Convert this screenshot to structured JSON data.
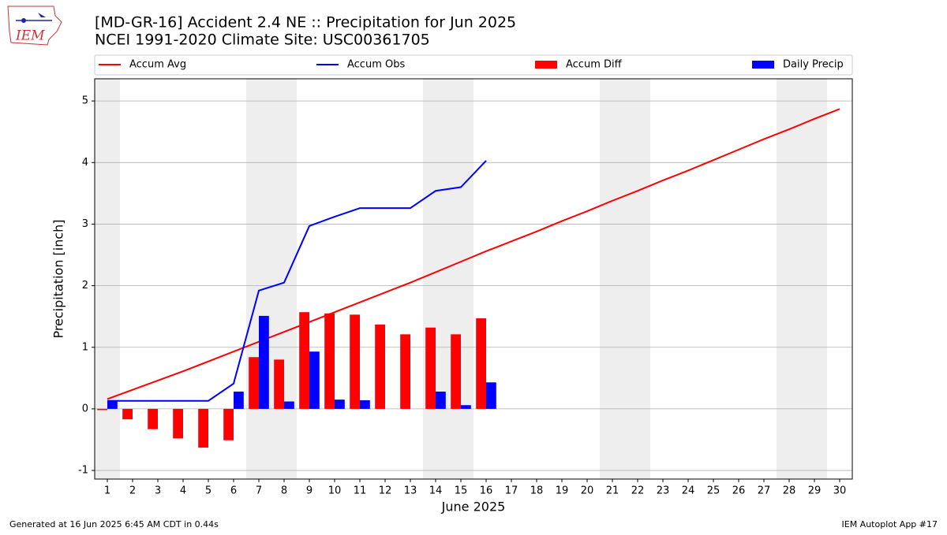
{
  "logo_text": "IEM",
  "chart_data": {
    "type": "combo",
    "title": "[MD-GR-16] Accident 2.4 NE :: Precipitation for Jun 2025",
    "subtitle": "NCEI 1991-2020 Climate Site: USC00361705",
    "xlabel": "June 2025",
    "ylabel": "Precipitation [inch]",
    "x": [
      1,
      2,
      3,
      4,
      5,
      6,
      7,
      8,
      9,
      10,
      11,
      12,
      13,
      14,
      15,
      16,
      17,
      18,
      19,
      20,
      21,
      22,
      23,
      24,
      25,
      26,
      27,
      28,
      29,
      30
    ],
    "xlim": [
      0.5,
      30.5
    ],
    "xticks": [
      1,
      2,
      3,
      4,
      5,
      6,
      7,
      8,
      9,
      10,
      11,
      12,
      13,
      14,
      15,
      16,
      17,
      18,
      19,
      20,
      21,
      22,
      23,
      24,
      25,
      26,
      27,
      28,
      29,
      30
    ],
    "ylim": [
      -1.14,
      5.36
    ],
    "yticks": [
      -1,
      0,
      1,
      2,
      3,
      4,
      5
    ],
    "grid": true,
    "shaded_spans": [
      [
        0.5,
        1.5
      ],
      [
        6.5,
        8.5
      ],
      [
        13.5,
        15.5
      ],
      [
        20.5,
        22.5
      ],
      [
        27.5,
        29.5
      ]
    ],
    "series": [
      {
        "name": "Accum Avg",
        "type": "line",
        "color": "#ff0000",
        "values": [
          0.16,
          0.31,
          0.46,
          0.61,
          0.77,
          0.93,
          1.09,
          1.25,
          1.41,
          1.57,
          1.73,
          1.89,
          2.05,
          2.22,
          2.39,
          2.56,
          2.72,
          2.88,
          3.05,
          3.21,
          3.38,
          3.54,
          3.71,
          3.87,
          4.04,
          4.21,
          4.38,
          4.54,
          4.71,
          4.87
        ]
      },
      {
        "name": "Accum Obs",
        "type": "line",
        "color": "#0000ff",
        "values": [
          0.13,
          0.13,
          0.13,
          0.13,
          0.13,
          0.41,
          1.92,
          2.05,
          2.97,
          3.12,
          3.26,
          3.26,
          3.26,
          3.54,
          3.6,
          4.03,
          null,
          null,
          null,
          null,
          null,
          null,
          null,
          null,
          null,
          null,
          null,
          null,
          null,
          null
        ]
      },
      {
        "name": "Accum Diff",
        "type": "bar",
        "color": "#ff0000",
        "values": [
          -0.02,
          -0.17,
          -0.33,
          -0.48,
          -0.63,
          -0.51,
          0.84,
          0.8,
          1.57,
          1.55,
          1.53,
          1.37,
          1.21,
          1.32,
          1.21,
          1.47,
          null,
          null,
          null,
          null,
          null,
          null,
          null,
          null,
          null,
          null,
          null,
          null,
          null,
          null
        ]
      },
      {
        "name": "Daily Precip",
        "type": "bar",
        "color": "#0000ff",
        "values": [
          0.13,
          0,
          0,
          0,
          0,
          0.28,
          1.51,
          0.12,
          0.93,
          0.15,
          0.14,
          0,
          0,
          0.28,
          0.06,
          0.43,
          null,
          null,
          null,
          null,
          null,
          null,
          null,
          null,
          null,
          null,
          null,
          null,
          null,
          null
        ]
      }
    ],
    "footer_left": "Generated at 16 Jun 2025 6:45 AM CDT in 0.44s",
    "footer_right": "IEM Autoplot App #17"
  }
}
